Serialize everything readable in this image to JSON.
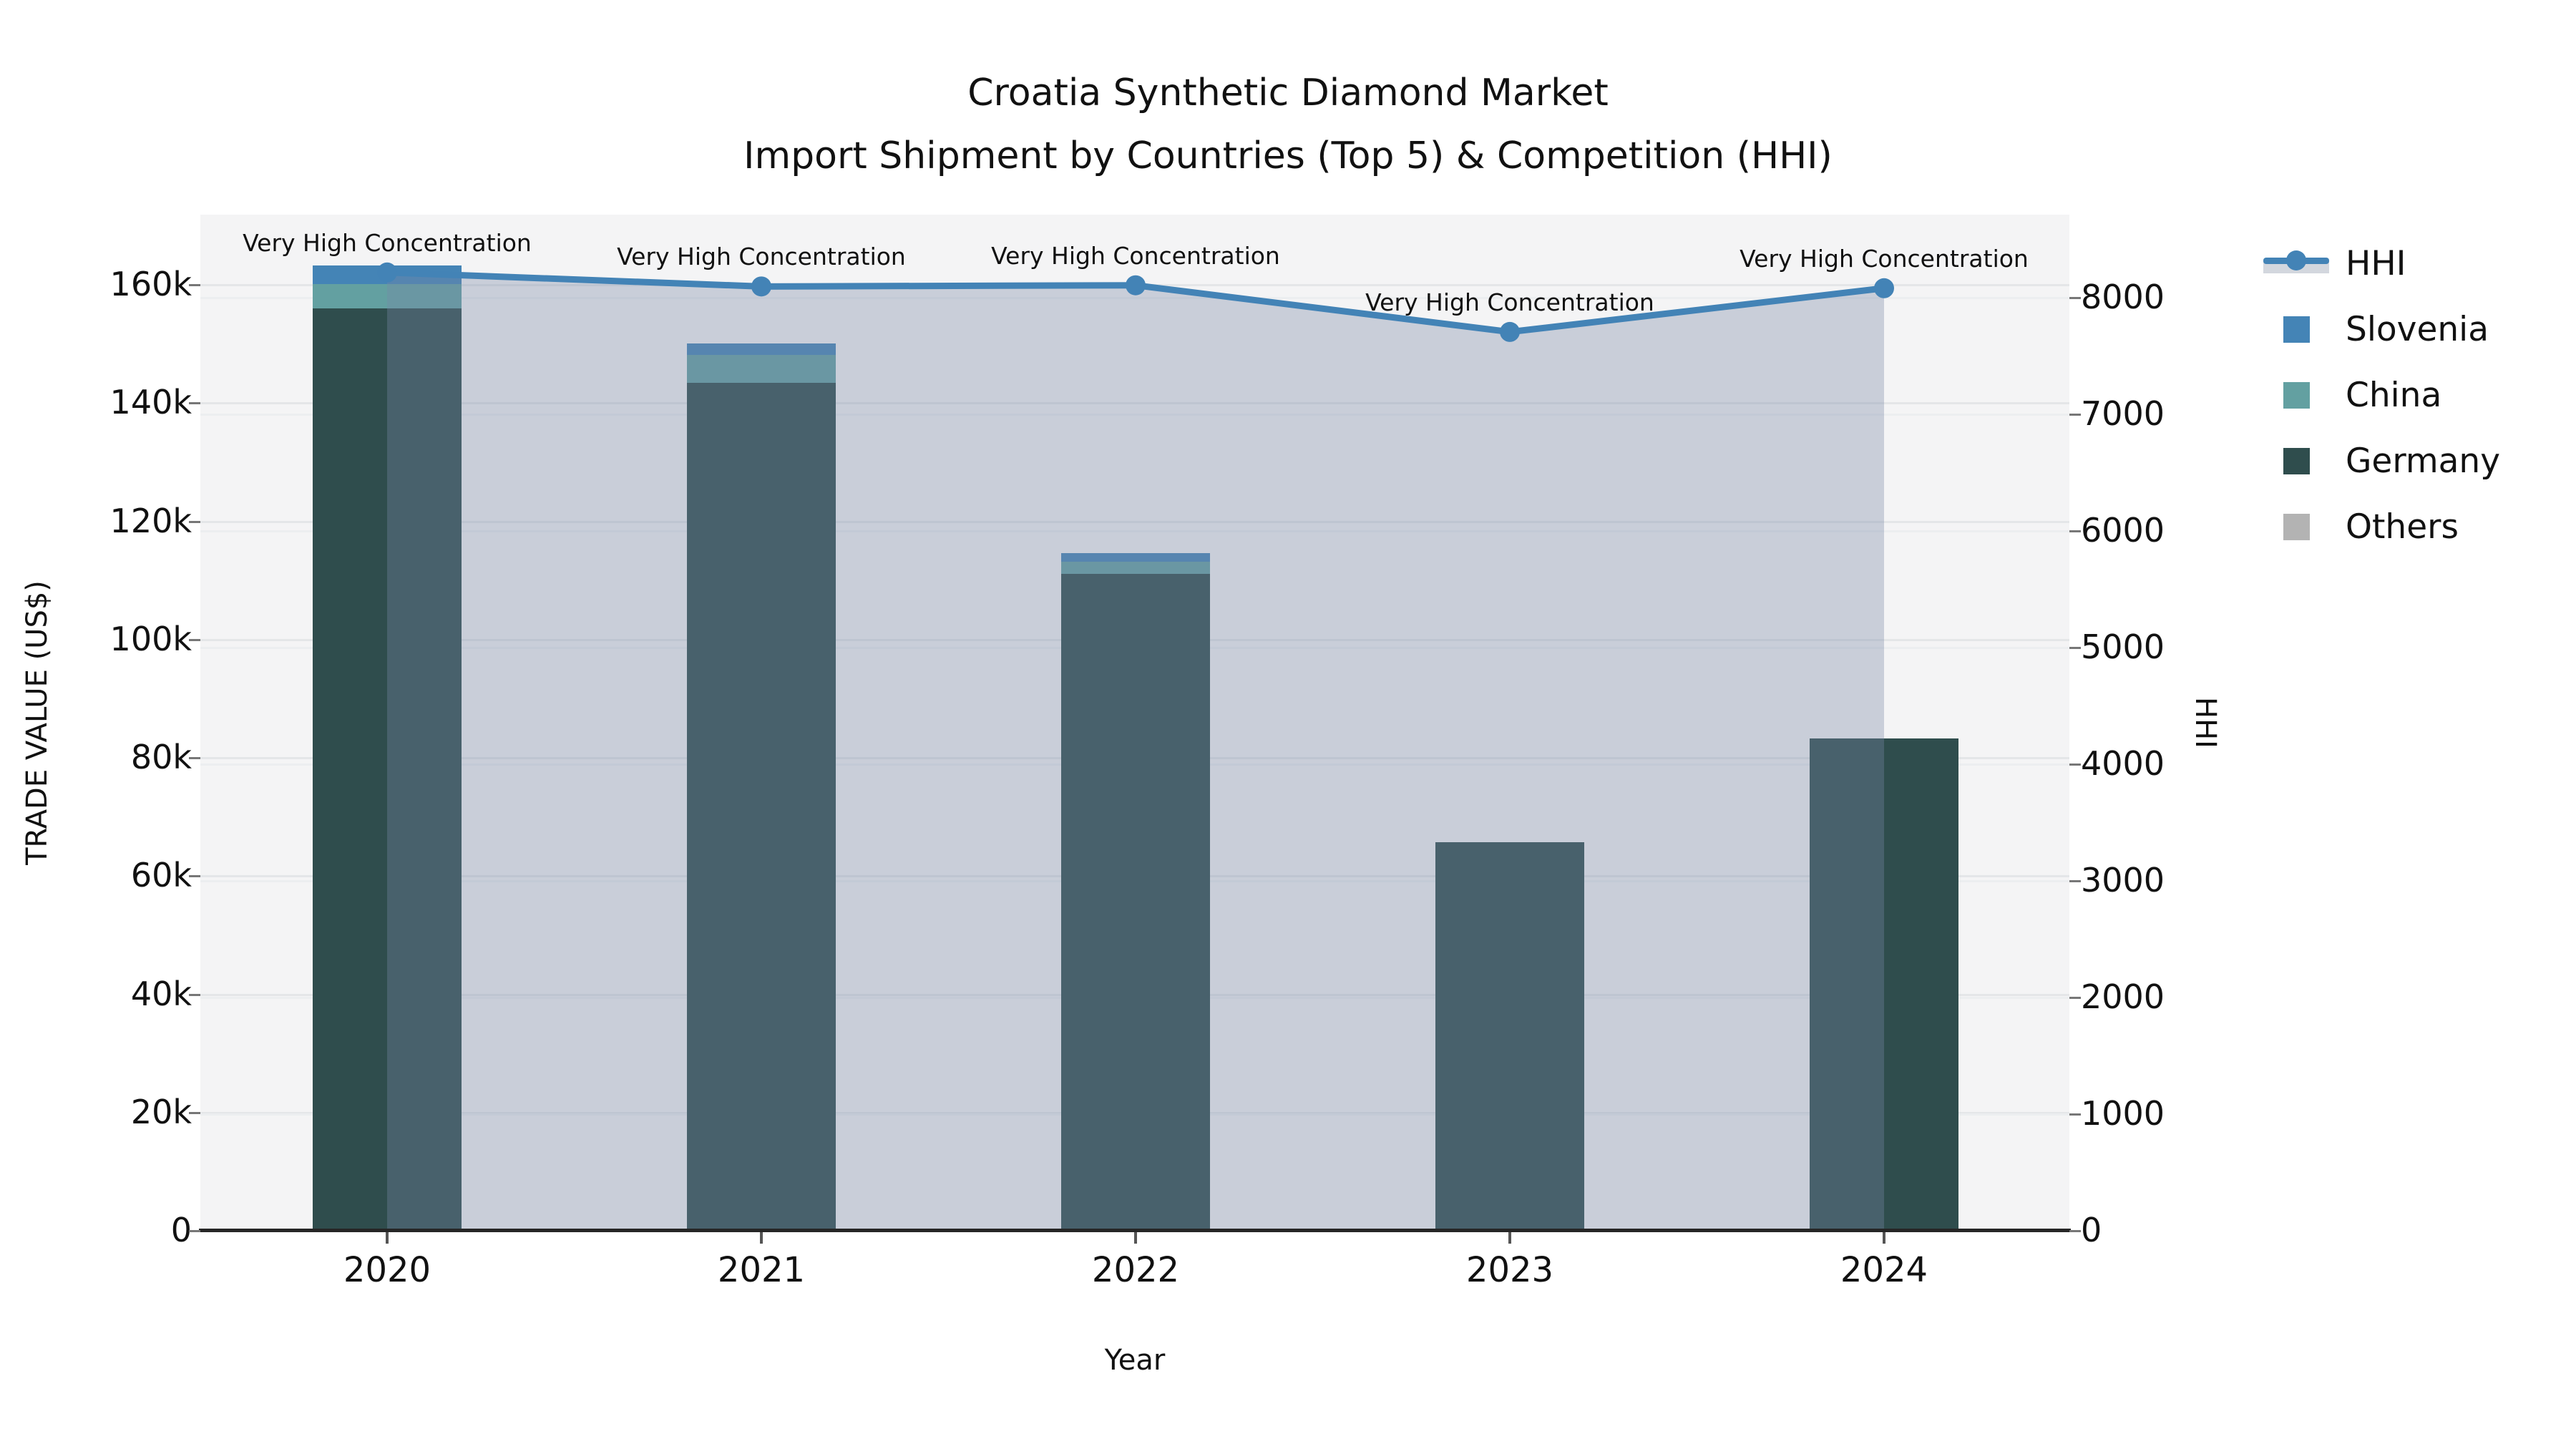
{
  "title": {
    "line1": "Croatia Synthetic Diamond Market",
    "line2": "Import Shipment by Countries (Top 5) & Competition (HHI)"
  },
  "axes": {
    "x_label": "Year",
    "y_left_label": "TRADE VALUE (US$)",
    "y_right_label": "HHI",
    "y_left_ticks": [
      "0",
      "20k",
      "40k",
      "60k",
      "80k",
      "100k",
      "120k",
      "140k",
      "160k"
    ],
    "y_right_ticks": [
      "0",
      "1000",
      "2000",
      "3000",
      "4000",
      "5000",
      "6000",
      "7000",
      "8000"
    ]
  },
  "legend": [
    {
      "label": "HHI",
      "type": "line",
      "color": "#4383b6"
    },
    {
      "label": "Slovenia",
      "type": "square",
      "color": "#4484b6"
    },
    {
      "label": "China",
      "type": "square",
      "color": "#63a0a1"
    },
    {
      "label": "Germany",
      "type": "square",
      "color": "#2f4d4d"
    },
    {
      "label": "Others",
      "type": "square",
      "color": "#b3b3b3"
    }
  ],
  "chart_data": {
    "type": "bar+line",
    "title": "Croatia Synthetic Diamond Market — Import Shipment by Countries (Top 5) & Competition (HHI)",
    "xlabel": "Year",
    "ylabel_left": "TRADE VALUE (US$)",
    "ylabel_right": "HHI",
    "categories": [
      "2020",
      "2021",
      "2022",
      "2023",
      "2024"
    ],
    "stacked_bar_series_top_to_bottom": [
      {
        "name": "Slovenia",
        "color": "#4484b6",
        "values": [
          3100,
          1900,
          1400,
          0,
          0
        ]
      },
      {
        "name": "China",
        "color": "#63a0a1",
        "values": [
          4100,
          4700,
          2100,
          0,
          0
        ]
      },
      {
        "name": "Germany",
        "color": "#2f4d4d",
        "values": [
          155900,
          143300,
          111000,
          65600,
          83100
        ]
      },
      {
        "name": "Others",
        "color": "#b3b3b3",
        "values": [
          0,
          0,
          0,
          0,
          0
        ]
      }
    ],
    "bar_totals": [
      163100,
      149900,
      114500,
      65600,
      83100
    ],
    "line_series": {
      "name": "HHI",
      "axis": "right",
      "color": "#4383b6",
      "area_fill": "rgba(120,136,166,0.35)",
      "values": [
        8210,
        8090,
        8100,
        7700,
        8075
      ]
    },
    "point_annotations": [
      "Very High Concentration",
      "Very High Concentration",
      "Very High Concentration",
      "Very High Concentration",
      "Very High Concentration"
    ],
    "y_left_axis": {
      "min": 0,
      "max": 171700,
      "tick_step": 20000,
      "tick_labels": [
        "0",
        "20k",
        "40k",
        "60k",
        "80k",
        "100k",
        "120k",
        "140k",
        "160k"
      ]
    },
    "y_right_axis": {
      "min": 0,
      "max": 8700,
      "tick_step": 1000,
      "tick_labels": [
        "0",
        "1000",
        "2000",
        "3000",
        "4000",
        "5000",
        "6000",
        "7000",
        "8000"
      ]
    },
    "grid": true,
    "legend_position": "right"
  }
}
